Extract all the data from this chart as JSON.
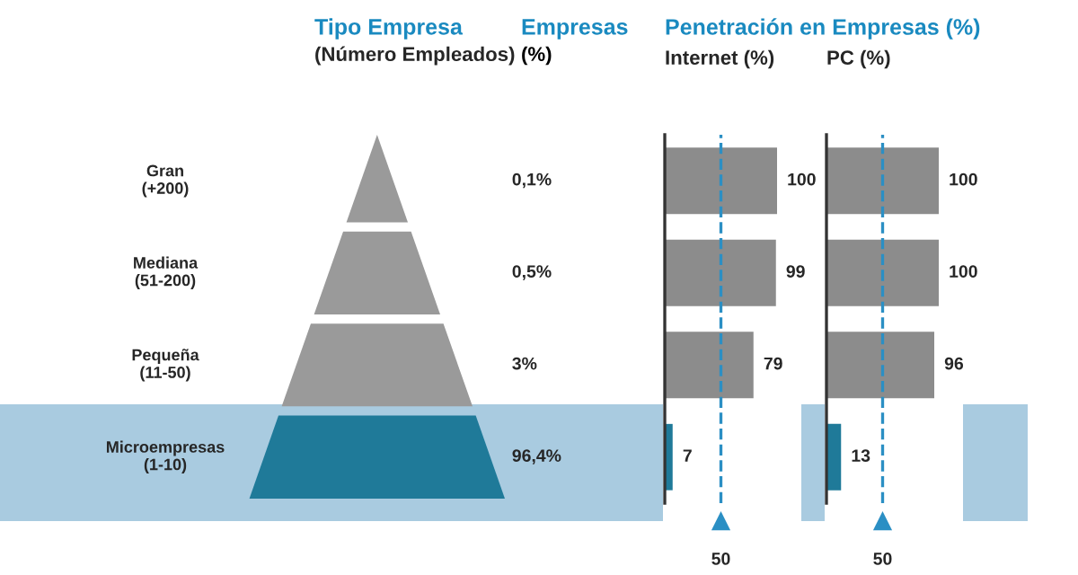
{
  "chart_data": [
    {
      "type": "other",
      "title": "Tipo Empresa",
      "subtitle": "(Número Empleados)",
      "annotations": [
        "Empresas",
        "(%)"
      ],
      "categories": [
        "Gran\n(+200)",
        "Mediana\n(51-200)",
        "Pequeña\n(11-50)",
        "Microempresas\n(1-10)"
      ],
      "value_labels": [
        "0,1%",
        "0,5%",
        "3%",
        "96,4%"
      ]
    },
    {
      "type": "bar",
      "orientation": "horizontal",
      "title": "Penetración en Empresas (%)",
      "subtitle": "Internet (%)",
      "categories": [
        null,
        null,
        null,
        null
      ],
      "values": [
        100,
        99,
        79,
        7
      ],
      "colors": [
        "#8c8c8c",
        "#8c8c8c",
        "#8c8c8c",
        "#1f7a99"
      ],
      "data_labels": true,
      "ref_lines": [
        {
          "axis": "x",
          "value": 50,
          "label": "50",
          "color": "#2b8fc4",
          "line_style": "dashed"
        }
      ]
    },
    {
      "type": "bar",
      "orientation": "horizontal",
      "subtitle": "PC (%)",
      "categories": [
        null,
        null,
        null,
        null
      ],
      "values": [
        100,
        100,
        96,
        13
      ],
      "colors": [
        "#8c8c8c",
        "#8c8c8c",
        "#8c8c8c",
        "#1f7a99"
      ],
      "data_labels": true,
      "ref_lines": [
        {
          "axis": "x",
          "value": 50,
          "label": "50",
          "color": "#2b8fc4",
          "line_style": "dashed"
        }
      ]
    }
  ]
}
